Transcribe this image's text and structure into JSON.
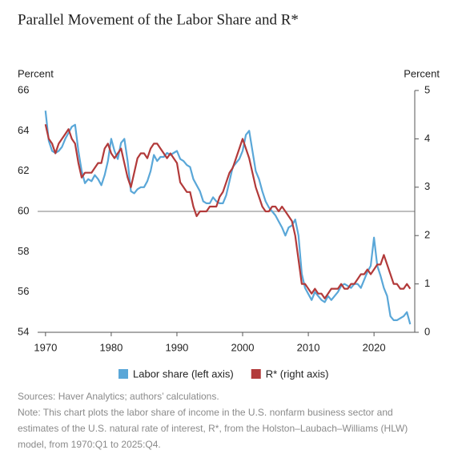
{
  "chart_data": {
    "type": "line",
    "title": "Parallel Movement of the Labor Share and R*",
    "y_label": "Percent",
    "y2_label": "Percent",
    "x": [
      1970,
      1970.5,
      1971,
      1971.5,
      1972,
      1972.5,
      1973,
      1973.5,
      1974,
      1974.5,
      1975,
      1975.5,
      1976,
      1976.5,
      1977,
      1977.5,
      1978,
      1978.5,
      1979,
      1979.5,
      1980,
      1980.5,
      1981,
      1981.5,
      1982,
      1982.5,
      1983,
      1983.5,
      1984,
      1984.5,
      1985,
      1985.5,
      1986,
      1986.5,
      1987,
      1987.5,
      1988,
      1988.5,
      1989,
      1989.5,
      1990,
      1990.5,
      1991,
      1991.5,
      1992,
      1992.5,
      1993,
      1993.5,
      1994,
      1994.5,
      1995,
      1995.5,
      1996,
      1996.5,
      1997,
      1997.5,
      1998,
      1998.5,
      1999,
      1999.5,
      2000,
      2000.5,
      2001,
      2001.5,
      2002,
      2002.5,
      2003,
      2003.5,
      2004,
      2004.5,
      2005,
      2005.5,
      2006,
      2006.5,
      2007,
      2007.5,
      2008,
      2008.5,
      2009,
      2009.5,
      2010,
      2010.5,
      2011,
      2011.5,
      2012,
      2012.5,
      2013,
      2013.5,
      2014,
      2014.5,
      2015,
      2015.5,
      2016,
      2016.5,
      2017,
      2017.5,
      2018,
      2018.5,
      2019,
      2019.5,
      2020,
      2020.5,
      2021,
      2021.5,
      2022,
      2022.5,
      2023,
      2023.5,
      2024,
      2024.5,
      2025,
      2025.5
    ],
    "series": [
      {
        "name": "Labor share (left axis)",
        "color": "#5aa7d8",
        "axis": "y",
        "values": [
          65.0,
          63.5,
          63.0,
          62.9,
          63.0,
          63.2,
          63.6,
          63.9,
          64.2,
          64.3,
          63.0,
          62.0,
          61.4,
          61.6,
          61.5,
          61.8,
          61.6,
          61.3,
          61.8,
          62.5,
          63.6,
          63.0,
          62.6,
          63.4,
          63.6,
          62.5,
          61.0,
          60.9,
          61.1,
          61.2,
          61.2,
          61.5,
          62.0,
          62.8,
          62.5,
          62.7,
          62.7,
          62.9,
          62.8,
          62.9,
          63.0,
          62.6,
          62.5,
          62.3,
          62.2,
          61.6,
          61.3,
          61.0,
          60.5,
          60.4,
          60.4,
          60.7,
          60.5,
          60.4,
          60.4,
          60.8,
          61.5,
          62.2,
          62.4,
          62.6,
          63.0,
          63.8,
          64.0,
          63.0,
          62.0,
          61.6,
          61.0,
          60.5,
          60.2,
          60.0,
          59.8,
          59.5,
          59.2,
          58.8,
          59.2,
          59.3,
          59.6,
          58.8,
          56.9,
          56.2,
          55.9,
          55.6,
          56.0,
          55.8,
          55.6,
          55.5,
          55.8,
          55.6,
          55.8,
          56.0,
          56.3,
          56.4,
          56.3,
          56.2,
          56.4,
          56.4,
          56.2,
          56.6,
          57.0,
          57.3,
          58.7,
          57.3,
          56.8,
          56.2,
          55.8,
          54.8,
          54.6,
          54.6,
          54.7,
          54.8,
          55.0,
          54.4
        ]
      },
      {
        "name": "R* (right axis)",
        "color": "#b23a3a",
        "axis": "y2",
        "values": [
          4.3,
          4.0,
          3.9,
          3.7,
          3.9,
          4.0,
          4.1,
          4.2,
          4.0,
          3.9,
          3.5,
          3.2,
          3.3,
          3.3,
          3.3,
          3.4,
          3.5,
          3.5,
          3.8,
          3.9,
          3.7,
          3.6,
          3.7,
          3.8,
          3.5,
          3.2,
          3.0,
          3.3,
          3.6,
          3.7,
          3.7,
          3.6,
          3.8,
          3.9,
          3.9,
          3.8,
          3.7,
          3.6,
          3.7,
          3.6,
          3.5,
          3.1,
          3.0,
          2.9,
          2.9,
          2.6,
          2.4,
          2.5,
          2.5,
          2.5,
          2.6,
          2.6,
          2.6,
          2.8,
          2.9,
          3.1,
          3.3,
          3.4,
          3.6,
          3.8,
          4.0,
          3.8,
          3.6,
          3.3,
          3.0,
          2.8,
          2.6,
          2.5,
          2.5,
          2.6,
          2.6,
          2.5,
          2.6,
          2.5,
          2.4,
          2.3,
          2.0,
          1.5,
          1.0,
          1.0,
          0.9,
          0.8,
          0.9,
          0.8,
          0.8,
          0.7,
          0.8,
          0.9,
          0.9,
          0.9,
          1.0,
          0.9,
          0.9,
          1.0,
          1.0,
          1.1,
          1.2,
          1.2,
          1.3,
          1.2,
          1.3,
          1.4,
          1.4,
          1.6,
          1.4,
          1.2,
          1.0,
          1.0,
          0.9,
          0.9,
          1.0,
          0.9
        ]
      }
    ],
    "xlim": [
      1968.8,
      2026.2
    ],
    "xticks": [
      1970,
      1980,
      1990,
      2000,
      2010,
      2020
    ],
    "ylim": [
      54,
      66
    ],
    "yticks": [
      54,
      56,
      58,
      60,
      62,
      64,
      66
    ],
    "y2lim": [
      0,
      5
    ],
    "y2ticks": [
      0,
      1,
      2,
      3,
      4,
      5
    ],
    "reference_line": 60,
    "legend": "bottom",
    "source": "Sources: Haver Analytics; authors’ calculations.",
    "note_lines": [
      "Note: This chart plots the labor share of income in the U.S. nonfarm business sector and",
      "estimates of the U.S. natural rate of interest, R*, from the Holston–Laubach–Williams (HLW)",
      "model, from 1970:Q1 to 2025:Q4."
    ]
  }
}
